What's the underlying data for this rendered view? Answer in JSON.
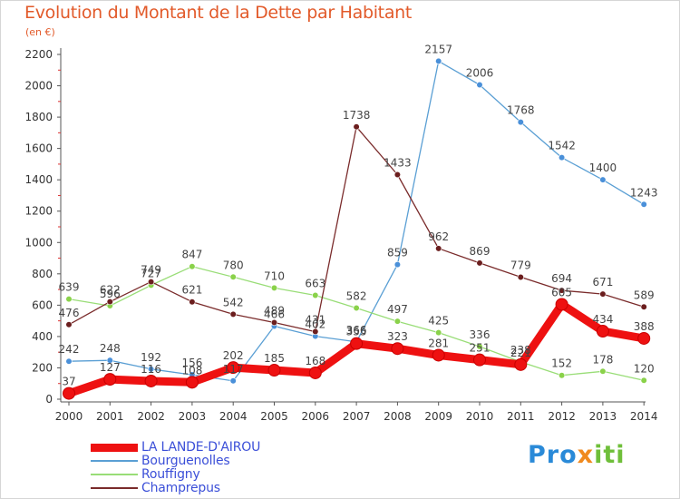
{
  "header": {
    "title": "Evolution du Montant de la Dette par Habitant",
    "subtitle": "(en €)"
  },
  "brand": {
    "p1": "Pro",
    "p2": "x",
    "p3": "iti"
  },
  "chart_data": {
    "type": "line",
    "title": "Evolution du Montant de la Dette par Habitant",
    "subtitle": "(en €)",
    "xlabel": "",
    "ylabel": "",
    "x": [
      2000,
      2001,
      2002,
      2003,
      2004,
      2005,
      2006,
      2007,
      2008,
      2009,
      2010,
      2011,
      2012,
      2013,
      2014
    ],
    "x_tick_labels": [
      "2000",
      "2001",
      "2002",
      "2003",
      "2004",
      "2005",
      "2006",
      "2007",
      "2008",
      "2009",
      "2010",
      "2011",
      "2012",
      "2013",
      "2014"
    ],
    "ylim": [
      0,
      2200
    ],
    "y_ticks": [
      0,
      200,
      400,
      600,
      800,
      1000,
      1200,
      1400,
      1600,
      1800,
      2000,
      2200
    ],
    "grid": false,
    "legend_position": "bottom-left",
    "series": [
      {
        "name": "LA LANDE-D'AIROU",
        "color": "#ee1111",
        "marker_color": "#ee1111",
        "emphasis": true,
        "values": [
          37,
          127,
          116,
          108,
          202,
          185,
          168,
          355,
          323,
          281,
          251,
          221,
          605,
          434,
          388
        ],
        "labels": [
          "37",
          "127",
          "116",
          "108",
          "202",
          "185",
          "168",
          "355",
          "323",
          "281",
          "251",
          "221",
          "605",
          "434",
          "388"
        ]
      },
      {
        "name": "Bourguenolles",
        "color": "#5a9fd4",
        "marker_color": "#4a90d9",
        "values": [
          242,
          248,
          192,
          156,
          117,
          466,
          402,
          366,
          859,
          2157,
          2006,
          1768,
          1542,
          1400,
          1243
        ],
        "labels": [
          "242",
          "248",
          "192",
          "156",
          "117",
          "466",
          "402",
          "366",
          "859",
          "2157",
          "2006",
          "1768",
          "1542",
          "1400",
          "1243"
        ]
      },
      {
        "name": "Rouffigny",
        "color": "#99dd77",
        "marker_color": "#8ad24a",
        "values": [
          639,
          596,
          727,
          847,
          780,
          710,
          663,
          582,
          497,
          425,
          336,
          238,
          152,
          178,
          120
        ],
        "labels": [
          "639",
          "596",
          "727",
          "847",
          "780",
          "710",
          "663",
          "582",
          "497",
          "425",
          "336",
          "238",
          "152",
          "178",
          "120"
        ]
      },
      {
        "name": "Champrepus",
        "color": "#7a2b2b",
        "marker_color": "#6b1e1e",
        "values": [
          476,
          622,
          749,
          621,
          542,
          489,
          431,
          1738,
          1433,
          962,
          869,
          779,
          694,
          671,
          589
        ],
        "labels": [
          "476",
          "622",
          "749",
          "621",
          "542",
          "489",
          "431",
          "1738",
          "1433",
          "962",
          "869",
          "779",
          "694",
          "671",
          "589"
        ]
      }
    ]
  }
}
